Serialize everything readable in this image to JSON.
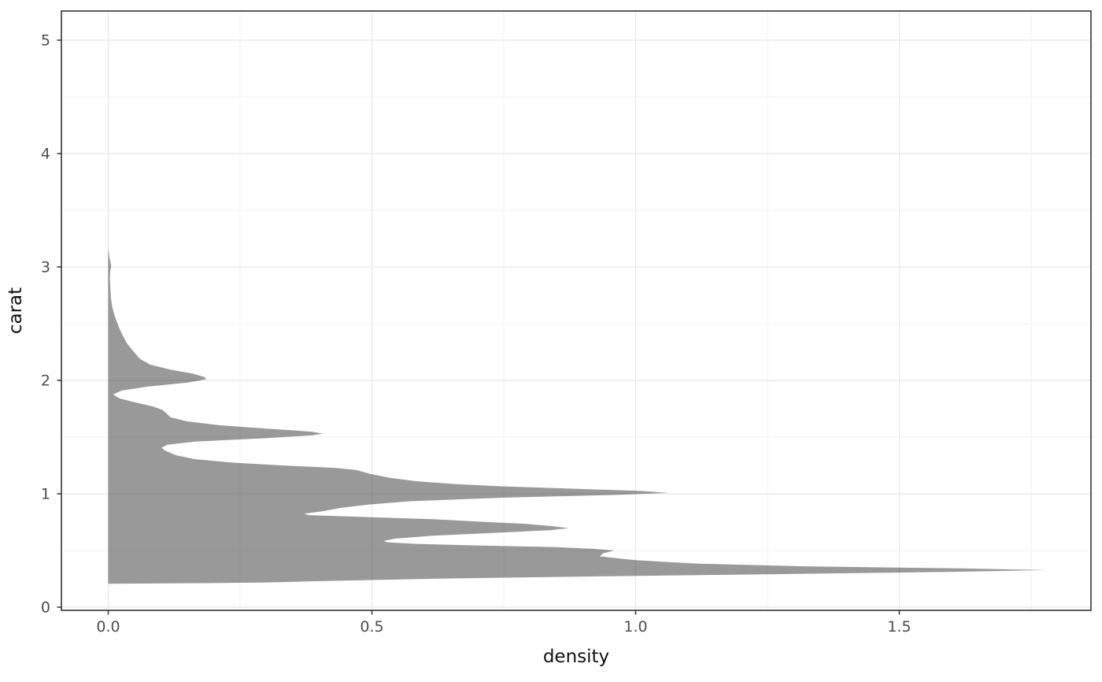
{
  "figure": {
    "background": "#ffffff"
  },
  "chart_data": {
    "type": "area",
    "subtype": "density",
    "orientation": "horizontal",
    "title": "",
    "xlabel": "density",
    "ylabel": "carat",
    "x_ticks": [
      0.0,
      0.5,
      1.0,
      1.5
    ],
    "x_tick_labels": [
      "0.0",
      "0.5",
      "1.0",
      "1.5"
    ],
    "x_minor_ticks": [
      0.25,
      0.75,
      1.25,
      1.75
    ],
    "xlim": [
      -0.0888,
      1.8634
    ],
    "y_ticks": [
      0,
      1,
      2,
      3,
      4,
      5
    ],
    "y_tick_labels": [
      "0",
      "1",
      "2",
      "3",
      "4",
      "5"
    ],
    "y_minor_ticks": [
      0.5,
      1.5,
      2.5,
      3.5,
      4.5
    ],
    "ylim": [
      -0.0278,
      5.2569
    ],
    "grid": true,
    "legend": false,
    "series": [
      {
        "name": "carat density",
        "fill_rgba": "rgba(0,0,0,0.40)",
        "fill_flat_hex": "#999999",
        "points_carat_density": [
          [
            0.207,
            0.0
          ],
          [
            0.212,
            0.18
          ],
          [
            0.218,
            0.3
          ],
          [
            0.233,
            0.43
          ],
          [
            0.252,
            0.63
          ],
          [
            0.272,
            0.93
          ],
          [
            0.292,
            1.28
          ],
          [
            0.312,
            1.6
          ],
          [
            0.327,
            1.78
          ],
          [
            0.342,
            1.62
          ],
          [
            0.36,
            1.32
          ],
          [
            0.385,
            1.11
          ],
          [
            0.415,
            1.0
          ],
          [
            0.448,
            0.932
          ],
          [
            0.475,
            0.938
          ],
          [
            0.5,
            0.96
          ],
          [
            0.515,
            0.92
          ],
          [
            0.53,
            0.845
          ],
          [
            0.545,
            0.69
          ],
          [
            0.558,
            0.585
          ],
          [
            0.572,
            0.53
          ],
          [
            0.585,
            0.522
          ],
          [
            0.605,
            0.545
          ],
          [
            0.63,
            0.615
          ],
          [
            0.658,
            0.745
          ],
          [
            0.68,
            0.84
          ],
          [
            0.697,
            0.873
          ],
          [
            0.715,
            0.84
          ],
          [
            0.735,
            0.79
          ],
          [
            0.755,
            0.7
          ],
          [
            0.775,
            0.62
          ],
          [
            0.795,
            0.49
          ],
          [
            0.812,
            0.38
          ],
          [
            0.825,
            0.372
          ],
          [
            0.845,
            0.405
          ],
          [
            0.875,
            0.44
          ],
          [
            0.905,
            0.495
          ],
          [
            0.935,
            0.575
          ],
          [
            0.965,
            0.745
          ],
          [
            0.99,
            0.96
          ],
          [
            1.008,
            1.062
          ],
          [
            1.025,
            1.01
          ],
          [
            1.045,
            0.88
          ],
          [
            1.065,
            0.75
          ],
          [
            1.085,
            0.66
          ],
          [
            1.11,
            0.585
          ],
          [
            1.14,
            0.535
          ],
          [
            1.175,
            0.497
          ],
          [
            1.21,
            0.47
          ],
          [
            1.228,
            0.43
          ],
          [
            1.25,
            0.33
          ],
          [
            1.275,
            0.235
          ],
          [
            1.305,
            0.165
          ],
          [
            1.34,
            0.128
          ],
          [
            1.38,
            0.108
          ],
          [
            1.405,
            0.101
          ],
          [
            1.432,
            0.112
          ],
          [
            1.46,
            0.165
          ],
          [
            1.49,
            0.295
          ],
          [
            1.515,
            0.385
          ],
          [
            1.53,
            0.407
          ],
          [
            1.548,
            0.385
          ],
          [
            1.575,
            0.3
          ],
          [
            1.605,
            0.21
          ],
          [
            1.64,
            0.148
          ],
          [
            1.675,
            0.118
          ],
          [
            1.71,
            0.11
          ],
          [
            1.74,
            0.103
          ],
          [
            1.77,
            0.085
          ],
          [
            1.805,
            0.052
          ],
          [
            1.84,
            0.022
          ],
          [
            1.875,
            0.009
          ],
          [
            1.91,
            0.025
          ],
          [
            1.945,
            0.075
          ],
          [
            1.98,
            0.15
          ],
          [
            2.01,
            0.186
          ],
          [
            2.03,
            0.182
          ],
          [
            2.06,
            0.16
          ],
          [
            2.095,
            0.118
          ],
          [
            2.14,
            0.079
          ],
          [
            2.19,
            0.06
          ],
          [
            2.26,
            0.047
          ],
          [
            2.33,
            0.035
          ],
          [
            2.4,
            0.027
          ],
          [
            2.46,
            0.021
          ],
          [
            2.52,
            0.016
          ],
          [
            2.58,
            0.0115
          ],
          [
            2.65,
            0.0075
          ],
          [
            2.73,
            0.005
          ],
          [
            2.82,
            0.004
          ],
          [
            2.9,
            0.0032
          ],
          [
            2.96,
            0.0038
          ],
          [
            3.005,
            0.0055
          ],
          [
            3.045,
            0.0042
          ],
          [
            3.09,
            0.002
          ],
          [
            3.13,
            0.001
          ],
          [
            3.165,
            0.0
          ]
        ]
      }
    ],
    "colors": {
      "panel_background": "#ffffff",
      "panel_border": "#333333",
      "grid_major": "#e8e8e8",
      "grid_minor": "#f2f2f2",
      "tick_mark": "#333333",
      "tick_label": "#4d4d4d",
      "axis_title": "#111111",
      "density_fill_over_white": "#999999"
    }
  }
}
